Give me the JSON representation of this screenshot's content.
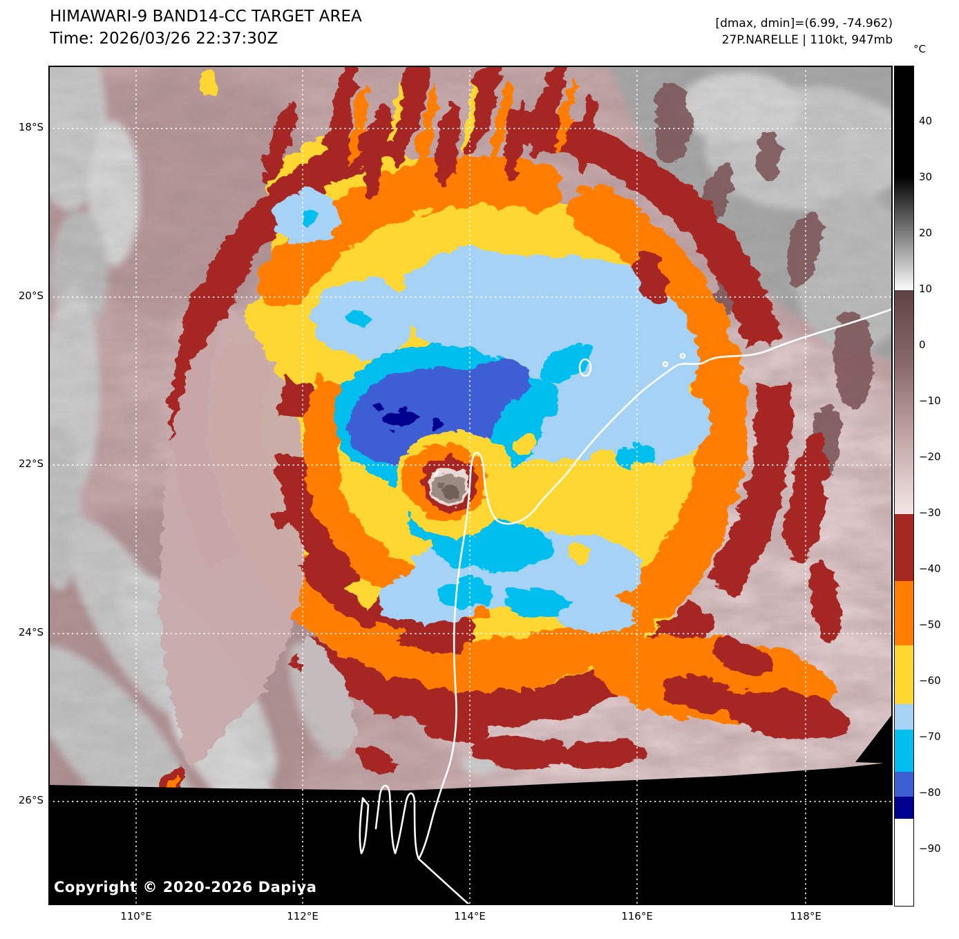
{
  "header": {
    "title": "HIMAWARI-9 BAND14-CC TARGET AREA",
    "time": "Time: 2026/03/26 22:37:30Z",
    "annotation_line1": "[dmax, dmin]=(6.99, -74.962)",
    "annotation_line2": "27P.NARELLE | 110kt, 947mb"
  },
  "map": {
    "copyright": "Copyright © 2020-2026 Dapiya"
  },
  "axes": {
    "lat_labels": [
      "18°S",
      "20°S",
      "22°S",
      "24°S",
      "26°S"
    ],
    "lon_labels": [
      "110°E",
      "112°E",
      "114°E",
      "116°E",
      "118°E"
    ]
  },
  "colorbar": {
    "unit_label": "°C",
    "domain": [
      50,
      -100
    ],
    "ticks": [
      {
        "value": 40,
        "label": "40"
      },
      {
        "value": 30,
        "label": "30"
      },
      {
        "value": 20,
        "label": "20"
      },
      {
        "value": 10,
        "label": "10"
      },
      {
        "value": 0,
        "label": "0"
      },
      {
        "value": -10,
        "label": "−10"
      },
      {
        "value": -20,
        "label": "−20"
      },
      {
        "value": -30,
        "label": "−30"
      },
      {
        "value": -40,
        "label": "−40"
      },
      {
        "value": -50,
        "label": "−50"
      },
      {
        "value": -60,
        "label": "−60"
      },
      {
        "value": -70,
        "label": "−70"
      },
      {
        "value": -80,
        "label": "−80"
      },
      {
        "value": -90,
        "label": "−90"
      }
    ],
    "segments": [
      {
        "from": 50,
        "to": 30,
        "color": "#000000"
      },
      {
        "from": 30,
        "to": 10,
        "stops": [
          "#050505",
          "#fbfbfb"
        ]
      },
      {
        "from": 10,
        "to": -30,
        "stops": [
          "#5e4343",
          "#8a6a6a",
          "#c4a8a8",
          "#f3e6e6"
        ]
      },
      {
        "from": -30,
        "to": -42,
        "color": "#a52823"
      },
      {
        "from": -42,
        "to": -53.5,
        "color": "#ff7d00"
      },
      {
        "from": -53.5,
        "to": -64,
        "color": "#ffd732"
      },
      {
        "from": -64,
        "to": -68.5,
        "color": "#a6d2f5"
      },
      {
        "from": -68.5,
        "to": -76,
        "color": "#00bfef"
      },
      {
        "from": -76,
        "to": -80.5,
        "color": "#3e5fd3"
      },
      {
        "from": -80.5,
        "to": -84.5,
        "color": "#00008f"
      },
      {
        "from": -84.5,
        "to": -100,
        "color": "#ffffff"
      }
    ]
  },
  "palette": {
    "background_warm_cloud": "#cdafb1",
    "pale_pink": "#e8d4d5",
    "gray_cloud": "#b5b5b5",
    "dark_red": "#a52823",
    "orange": "#ff7d00",
    "yellow": "#ffd732",
    "light_blue": "#a6d2f5",
    "cyan": "#00bfef",
    "royal_blue": "#3e5fd3",
    "navy": "#00008f",
    "no_data": "#000000",
    "gridline": "#ffffff",
    "coastline": "#ffffff"
  }
}
